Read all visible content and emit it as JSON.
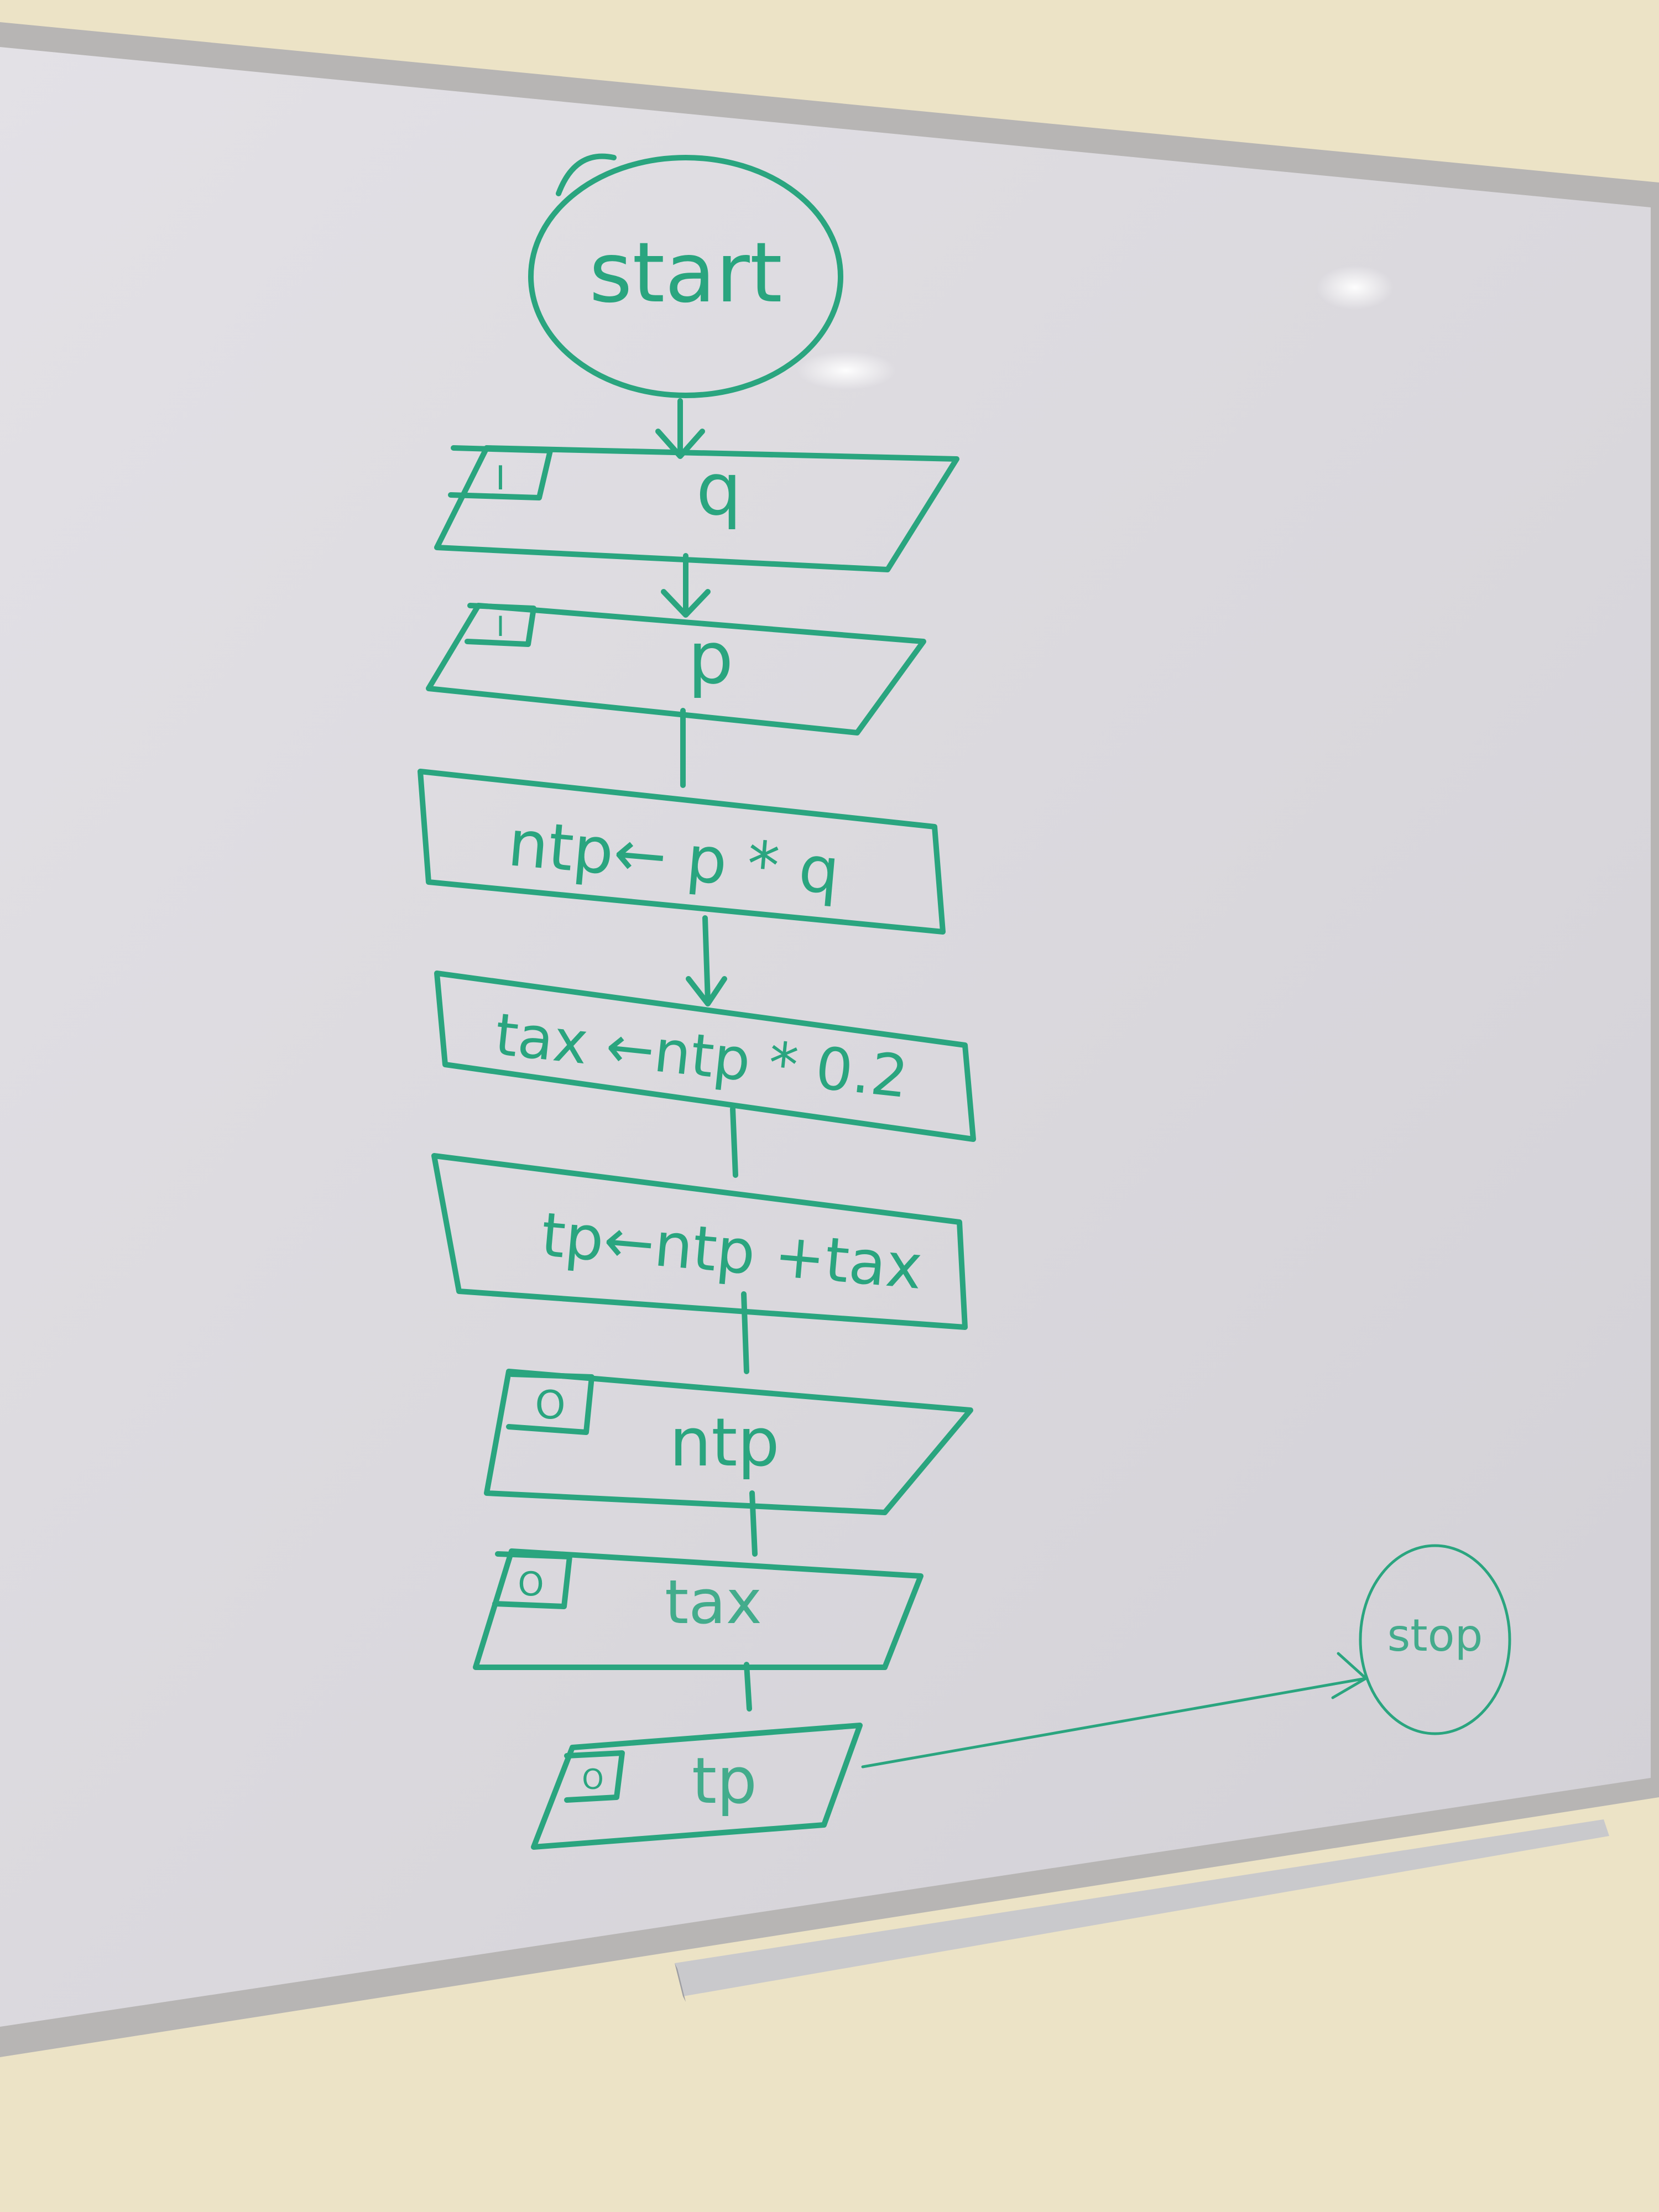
{
  "flowchart": {
    "start": "start",
    "input_marker": "I",
    "output_marker": "O",
    "steps": [
      {
        "kind": "input",
        "text": "q"
      },
      {
        "kind": "input",
        "text": "p"
      },
      {
        "kind": "process",
        "text": "ntp← p * q"
      },
      {
        "kind": "process",
        "text": "tax ←ntp * 0.2"
      },
      {
        "kind": "process",
        "text": "tp←ntp +tax"
      },
      {
        "kind": "output",
        "text": "ntp"
      },
      {
        "kind": "output",
        "text": "tax"
      },
      {
        "kind": "output",
        "text": "tp"
      }
    ],
    "stop": "stop"
  },
  "colors": {
    "marker": "#2aa57f",
    "board": "#dcdadf",
    "wall": "#ece3c6",
    "frame": "#b9b7b6"
  }
}
